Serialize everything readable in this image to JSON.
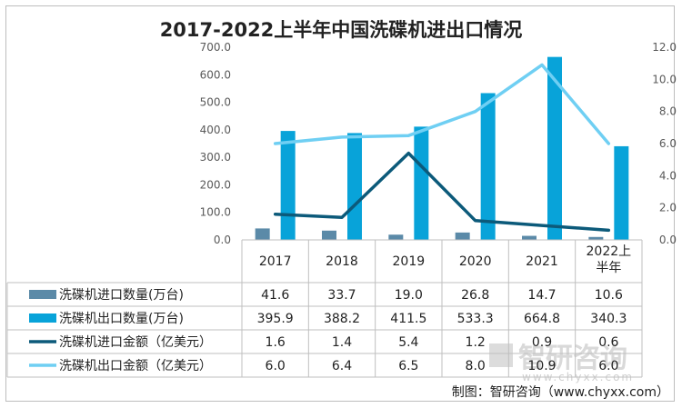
{
  "chart_data": {
    "type": "bar",
    "title": "2017-2022上半年中国洗碟机进出口情况",
    "categories": [
      "2017",
      "2018",
      "2019",
      "2020",
      "2021",
      "2022上半年"
    ],
    "left_axis": {
      "min": 0,
      "max": 700,
      "ticks": [
        "0.0",
        "100.0",
        "200.0",
        "300.0",
        "400.0",
        "500.0",
        "600.0",
        "700.0"
      ]
    },
    "right_axis": {
      "min": 0,
      "max": 12,
      "ticks": [
        "0.0",
        "2.0",
        "4.0",
        "6.0",
        "8.0",
        "10.0",
        "12.0"
      ]
    },
    "series": [
      {
        "name": "洗碟机进口数量(万台)",
        "kind": "bar",
        "axis": "left",
        "color": "#5b8aa8",
        "values": [
          41.6,
          33.7,
          19.0,
          26.8,
          14.7,
          10.6
        ],
        "labels": [
          "41.6",
          "33.7",
          "19.0",
          "26.8",
          "14.7",
          "10.6"
        ]
      },
      {
        "name": "洗碟机出口数量(万台)",
        "kind": "bar",
        "axis": "left",
        "color": "#08a3d9",
        "values": [
          395.9,
          388.2,
          411.5,
          533.3,
          664.8,
          340.3
        ],
        "labels": [
          "395.9",
          "388.2",
          "411.5",
          "533.3",
          "664.8",
          "340.3"
        ]
      },
      {
        "name": "洗碟机进口金额（亿美元）",
        "kind": "line",
        "axis": "right",
        "color": "#0c5a7a",
        "values": [
          1.6,
          1.4,
          5.4,
          1.2,
          0.9,
          0.6
        ],
        "labels": [
          "1.6",
          "1.4",
          "5.4",
          "1.2",
          "0.9",
          "0.6"
        ]
      },
      {
        "name": "洗碟机出口金额（亿美元）",
        "kind": "line",
        "axis": "right",
        "color": "#6fcff3",
        "values": [
          6.0,
          6.4,
          6.5,
          8.0,
          10.9,
          6.0
        ],
        "labels": [
          "6.0",
          "6.4",
          "6.5",
          "8.0",
          "10.9",
          "6.0"
        ]
      }
    ],
    "credit": "制图：智研咨询（www.chyxx.com）",
    "watermark": {
      "cn": "智研咨询",
      "en": "www.chyxx.com"
    }
  }
}
